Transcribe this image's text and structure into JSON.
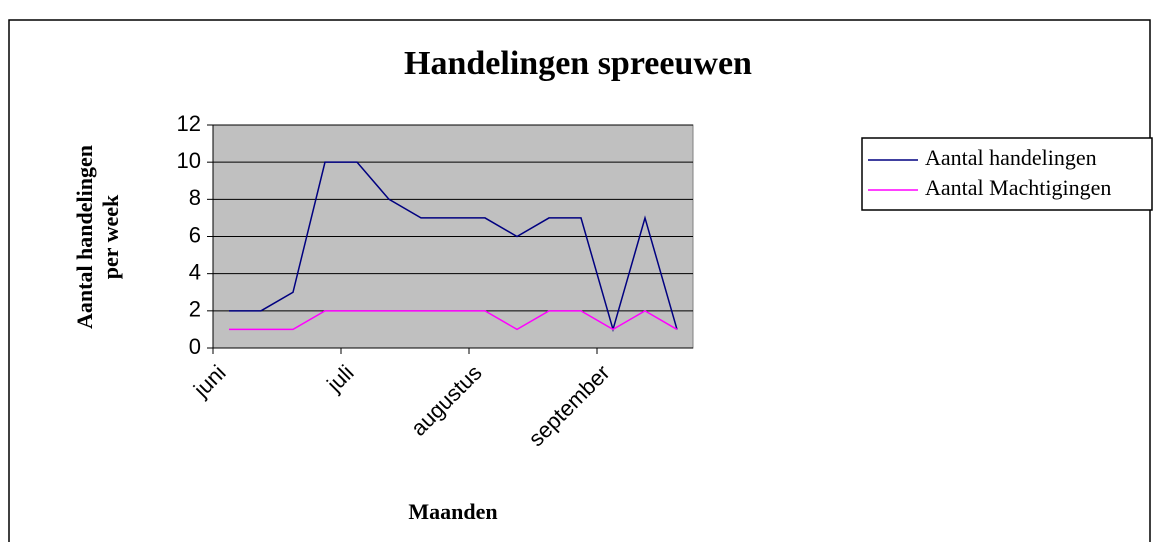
{
  "chart_data": {
    "type": "line",
    "title": "Handelingen spreeuwen",
    "y_label": [
      "Aantal handelingen",
      "per week"
    ],
    "x_label": "Maanden",
    "categories": [
      "juni",
      null,
      null,
      null,
      "juli",
      null,
      null,
      null,
      "augustus",
      null,
      null,
      null,
      "september",
      null,
      null
    ],
    "series": [
      {
        "name": "Aantal handelingen",
        "color": "#000080",
        "values": [
          2,
          2,
          3,
          10,
          10,
          8,
          7,
          7,
          7,
          6,
          7,
          7,
          1,
          7,
          1
        ]
      },
      {
        "name": "Aantal Machtigingen",
        "color": "#ff00ff",
        "values": [
          1,
          1,
          1,
          2,
          2,
          2,
          2,
          2,
          2,
          1,
          2,
          2,
          1,
          2,
          1
        ]
      }
    ],
    "ylim": [
      0,
      12
    ],
    "yticks": [
      0,
      2,
      4,
      6,
      8,
      10,
      12
    ],
    "grid": true,
    "legend": "right"
  }
}
